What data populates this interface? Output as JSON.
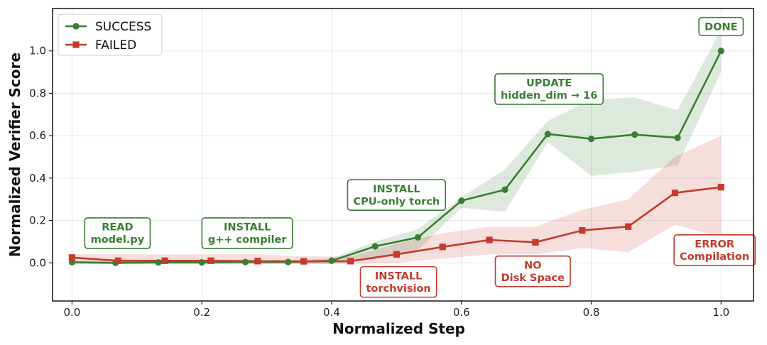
{
  "chart_data": {
    "type": "line",
    "xlabel": "Normalized Step",
    "ylabel": "Normalized Verifier Score",
    "xlim": [
      -0.03,
      1.05
    ],
    "ylim": [
      -0.18,
      1.2
    ],
    "xticks": [
      0.0,
      0.2,
      0.4,
      0.6,
      0.8,
      1.0
    ],
    "xtick_labels": [
      "0.0",
      "0.2",
      "0.4",
      "0.6",
      "0.8",
      "1.0"
    ],
    "yticks": [
      0.0,
      0.2,
      0.4,
      0.6,
      0.8,
      1.0
    ],
    "ytick_labels": [
      "0.0",
      "0.2",
      "0.4",
      "0.6",
      "0.8",
      "1.0"
    ],
    "grid": true,
    "legend_position": "top-left",
    "series": [
      {
        "name": "SUCCESS",
        "color": "#3a7d34",
        "marker": "circle",
        "x": [
          0.0,
          0.067,
          0.133,
          0.2,
          0.267,
          0.333,
          0.4,
          0.467,
          0.533,
          0.6,
          0.667,
          0.733,
          0.8,
          0.867,
          0.933,
          1.0
        ],
        "y": [
          0.003,
          0.0,
          0.002,
          0.002,
          0.004,
          0.004,
          0.01,
          0.078,
          0.12,
          0.293,
          0.345,
          0.608,
          0.585,
          0.605,
          0.59,
          1.0
        ],
        "band_lower": [
          -0.005,
          -0.005,
          -0.005,
          -0.005,
          -0.005,
          -0.005,
          -0.005,
          0.02,
          0.06,
          0.26,
          0.24,
          0.57,
          0.41,
          0.43,
          0.46,
          0.9
        ],
        "band_upper": [
          0.01,
          0.01,
          0.01,
          0.01,
          0.012,
          0.012,
          0.02,
          0.1,
          0.16,
          0.31,
          0.44,
          0.67,
          0.77,
          0.78,
          0.72,
          1.1
        ]
      },
      {
        "name": "FAILED",
        "color": "#c23b2d",
        "marker": "square",
        "x": [
          0.0,
          0.071,
          0.143,
          0.214,
          0.286,
          0.357,
          0.429,
          0.5,
          0.571,
          0.643,
          0.714,
          0.786,
          0.857,
          0.929,
          1.0
        ],
        "y": [
          0.025,
          0.01,
          0.01,
          0.01,
          0.008,
          0.007,
          0.008,
          0.04,
          0.075,
          0.108,
          0.097,
          0.153,
          0.171,
          0.33,
          0.357
        ],
        "band_lower": [
          -0.005,
          -0.005,
          -0.005,
          -0.005,
          -0.005,
          -0.005,
          -0.005,
          0.0,
          0.02,
          0.04,
          0.04,
          0.07,
          0.05,
          0.18,
          0.12
        ],
        "band_upper": [
          0.04,
          0.04,
          0.04,
          0.04,
          0.04,
          0.03,
          0.03,
          0.09,
          0.14,
          0.17,
          0.17,
          0.25,
          0.3,
          0.5,
          0.6
        ]
      }
    ],
    "annotations": [
      {
        "lines": [
          "READ",
          "model.py"
        ],
        "x": 0.07,
        "y": 0.14,
        "color": "#3a7d34"
      },
      {
        "lines": [
          "INSTALL",
          "g++ compiler"
        ],
        "x": 0.27,
        "y": 0.14,
        "color": "#3a7d34"
      },
      {
        "lines": [
          "INSTALL",
          "CPU-only torch"
        ],
        "x": 0.5,
        "y": 0.32,
        "color": "#3a7d34"
      },
      {
        "lines": [
          "UPDATE",
          "hidden_dim → 16"
        ],
        "x": 0.735,
        "y": 0.82,
        "color": "#3a7d34"
      },
      {
        "lines": [
          "DONE"
        ],
        "x": 1.0,
        "y": 1.115,
        "color": "#3a7d34"
      },
      {
        "lines": [
          "INSTALL",
          "torchvision"
        ],
        "x": 0.503,
        "y": -0.09,
        "color": "#c23b2d"
      },
      {
        "lines": [
          "NO",
          "Disk Space"
        ],
        "x": 0.71,
        "y": -0.04,
        "color": "#c23b2d"
      },
      {
        "lines": [
          "ERROR",
          "Compilation"
        ],
        "x": 0.99,
        "y": 0.06,
        "color": "#c23b2d"
      }
    ]
  }
}
